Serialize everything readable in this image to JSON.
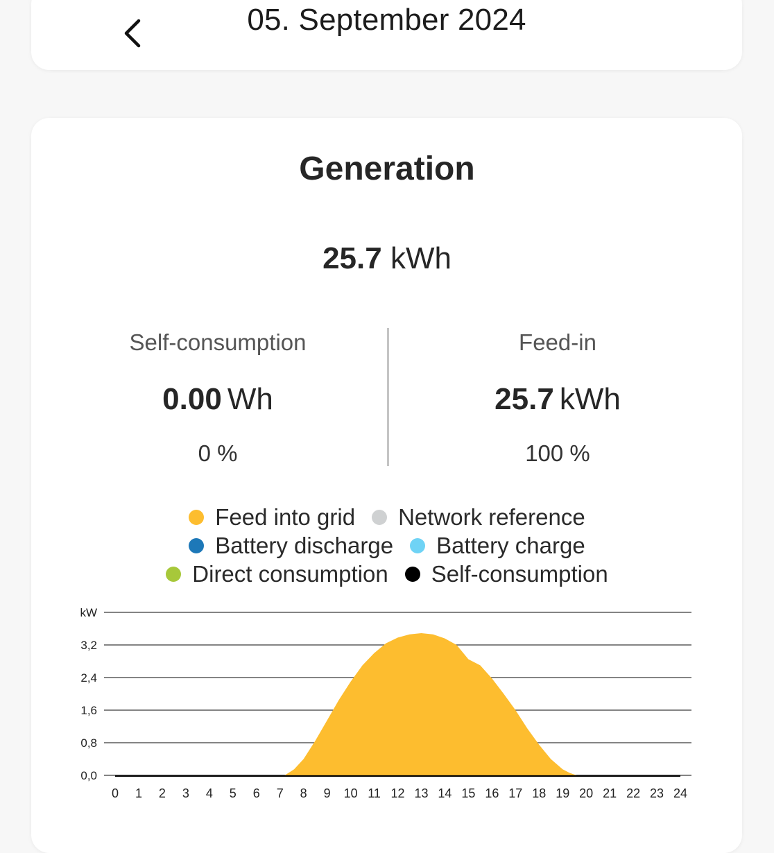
{
  "header": {
    "date": "05. September 2024"
  },
  "generation": {
    "title": "Generation",
    "total_value": "25.7",
    "total_unit": "kWh"
  },
  "self_consumption": {
    "label": "Self-consumption",
    "value": "0.00",
    "unit": "Wh",
    "percent": "0 %"
  },
  "feed_in": {
    "label": "Feed-in",
    "value": "25.7",
    "unit": "kWh",
    "percent": "100 %"
  },
  "legend": [
    {
      "label": "Feed into grid",
      "color": "#fdbd2f"
    },
    {
      "label": "Network reference",
      "color": "#cfd1d2"
    },
    {
      "label": "Battery discharge",
      "color": "#1d78b8"
    },
    {
      "label": "Battery charge",
      "color": "#6fd3f5"
    },
    {
      "label": "Direct consumption",
      "color": "#a7c83a"
    },
    {
      "label": "Self-consumption",
      "color": "#000000"
    }
  ],
  "chart_data": {
    "type": "area",
    "ylabel": "kW",
    "y_tick_labels": [
      "0,0",
      "0,8",
      "1,6",
      "2,4",
      "3,2"
    ],
    "ylim": [
      0,
      4.0
    ],
    "xlim": [
      0,
      24
    ],
    "x_tick_labels": [
      "0",
      "1",
      "2",
      "3",
      "4",
      "5",
      "6",
      "7",
      "8",
      "9",
      "10",
      "11",
      "12",
      "13",
      "14",
      "15",
      "16",
      "17",
      "18",
      "19",
      "20",
      "21",
      "22",
      "23",
      "24"
    ],
    "grid": true,
    "series": [
      {
        "name": "Feed into grid",
        "color": "#fdbd2f",
        "x": [
          0,
          7.2,
          7.6,
          8.0,
          8.5,
          9.0,
          9.5,
          10.0,
          10.5,
          11.0,
          11.5,
          12.0,
          12.5,
          13.0,
          13.5,
          14.0,
          14.5,
          15.0,
          15.5,
          16.0,
          16.5,
          17.0,
          17.5,
          18.0,
          18.5,
          19.0,
          19.3,
          19.6,
          24
        ],
        "values": [
          0,
          0,
          0.15,
          0.4,
          0.85,
          1.35,
          1.85,
          2.3,
          2.7,
          3.0,
          3.24,
          3.38,
          3.46,
          3.49,
          3.46,
          3.36,
          3.2,
          2.85,
          2.7,
          2.38,
          2.0,
          1.6,
          1.15,
          0.75,
          0.4,
          0.15,
          0.06,
          0,
          0
        ]
      },
      {
        "name": "Self-consumption",
        "color": "#000000",
        "x": [
          0,
          24
        ],
        "values": [
          0,
          0
        ]
      }
    ]
  }
}
